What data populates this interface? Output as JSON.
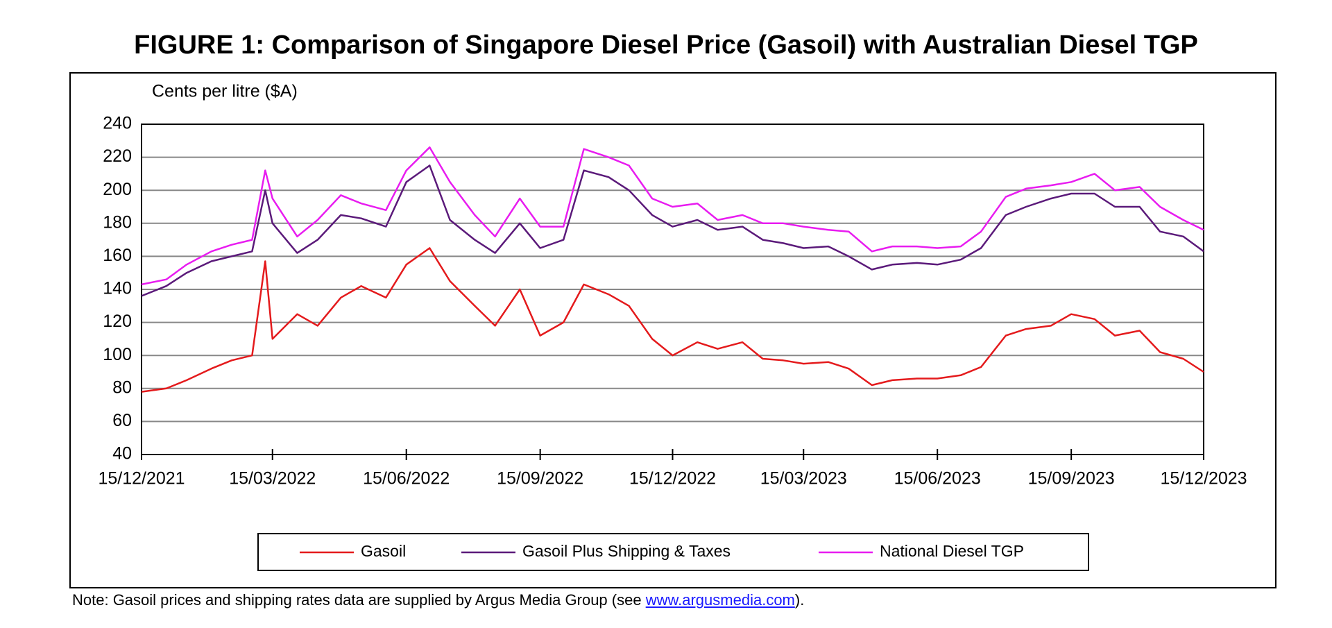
{
  "chart_data": {
    "type": "line",
    "title": "FIGURE 1: Comparison of Singapore Diesel Price (Gasoil) with Australian Diesel TGP",
    "y_label": "Cents per litre ($A)",
    "x": [
      "2021-12-15",
      "2022-01-01",
      "2022-01-15",
      "2022-02-01",
      "2022-02-15",
      "2022-03-01",
      "2022-03-10",
      "2022-03-15",
      "2022-04-01",
      "2022-04-15",
      "2022-05-01",
      "2022-05-15",
      "2022-06-01",
      "2022-06-15",
      "2022-07-01",
      "2022-07-15",
      "2022-08-01",
      "2022-08-15",
      "2022-09-01",
      "2022-09-15",
      "2022-10-01",
      "2022-10-15",
      "2022-11-01",
      "2022-11-15",
      "2022-12-01",
      "2022-12-15",
      "2023-01-01",
      "2023-01-15",
      "2023-02-01",
      "2023-02-15",
      "2023-03-01",
      "2023-03-15",
      "2023-04-01",
      "2023-04-15",
      "2023-05-01",
      "2023-05-15",
      "2023-06-01",
      "2023-06-15",
      "2023-07-01",
      "2023-07-15",
      "2023-08-01",
      "2023-08-15",
      "2023-09-01",
      "2023-09-15",
      "2023-10-01",
      "2023-10-15",
      "2023-11-01",
      "2023-11-15",
      "2023-12-01",
      "2023-12-15"
    ],
    "series": [
      {
        "name": "Gasoil",
        "color": "#e41a1c",
        "values": [
          78,
          80,
          85,
          92,
          97,
          100,
          157,
          110,
          125,
          118,
          135,
          142,
          135,
          155,
          165,
          145,
          130,
          118,
          140,
          112,
          120,
          143,
          137,
          130,
          110,
          100,
          108,
          104,
          108,
          98,
          97,
          95,
          96,
          92,
          82,
          85,
          86,
          86,
          88,
          93,
          112,
          116,
          118,
          125,
          122,
          112,
          115,
          102,
          98,
          90
        ]
      },
      {
        "name": "Gasoil Plus Shipping & Taxes",
        "color": "#5b1a7a",
        "values": [
          136,
          142,
          150,
          157,
          160,
          163,
          200,
          180,
          162,
          170,
          185,
          183,
          178,
          205,
          215,
          182,
          170,
          162,
          180,
          165,
          170,
          212,
          208,
          200,
          185,
          178,
          182,
          176,
          178,
          170,
          168,
          165,
          166,
          160,
          152,
          155,
          156,
          155,
          158,
          165,
          185,
          190,
          195,
          198,
          198,
          190,
          190,
          175,
          172,
          163
        ]
      },
      {
        "name": "National Diesel TGP",
        "color": "#e81cf0",
        "values": [
          143,
          146,
          155,
          163,
          167,
          170,
          212,
          195,
          172,
          182,
          197,
          192,
          188,
          212,
          226,
          205,
          185,
          172,
          195,
          178,
          178,
          225,
          220,
          215,
          195,
          190,
          192,
          182,
          185,
          180,
          180,
          178,
          176,
          175,
          163,
          166,
          166,
          165,
          166,
          175,
          196,
          201,
          203,
          205,
          210,
          200,
          202,
          190,
          182,
          176
        ]
      }
    ],
    "xlim": [
      "2021-12-15",
      "2023-12-15"
    ],
    "xticks": [
      {
        "value": "2021-12-15",
        "label": "15/12/2021"
      },
      {
        "value": "2022-03-15",
        "label": "15/03/2022"
      },
      {
        "value": "2022-06-15",
        "label": "15/06/2022"
      },
      {
        "value": "2022-09-15",
        "label": "15/09/2022"
      },
      {
        "value": "2022-12-15",
        "label": "15/12/2022"
      },
      {
        "value": "2023-03-15",
        "label": "15/03/2023"
      },
      {
        "value": "2023-06-15",
        "label": "15/06/2023"
      },
      {
        "value": "2023-09-15",
        "label": "15/09/2023"
      },
      {
        "value": "2023-12-15",
        "label": "15/12/2023"
      }
    ],
    "ylim": [
      40,
      240
    ],
    "yticks": [
      40,
      60,
      80,
      100,
      120,
      140,
      160,
      180,
      200,
      220,
      240
    ],
    "grid": true,
    "legend": "bottom",
    "note": {
      "before": "Note: Gasoil prices and shipping rates data are supplied by Argus Media Group (see ",
      "link": "www.argusmedia.com",
      "after": ")."
    }
  }
}
